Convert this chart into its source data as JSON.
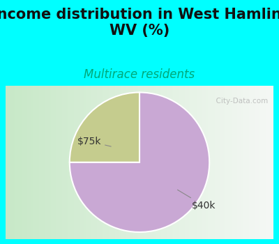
{
  "title": "Income distribution in West Hamlin,\nWV (%)",
  "subtitle": "Multirace residents",
  "slices": [
    0.75,
    0.25
  ],
  "labels": [
    "$40k",
    "$75k"
  ],
  "colors": [
    "#c9a8d4",
    "#c5cc8e"
  ],
  "title_fontsize": 15,
  "subtitle_fontsize": 12,
  "subtitle_color": "#00a878",
  "title_color": "#111111",
  "bg_top_color": "#00ffff",
  "chart_bg_left": "#b8ddb8",
  "chart_bg_right": "#f0f8f0",
  "label_fontsize": 10,
  "watermark": "  City-Data.com",
  "watermark_color": "#aaaaaa"
}
